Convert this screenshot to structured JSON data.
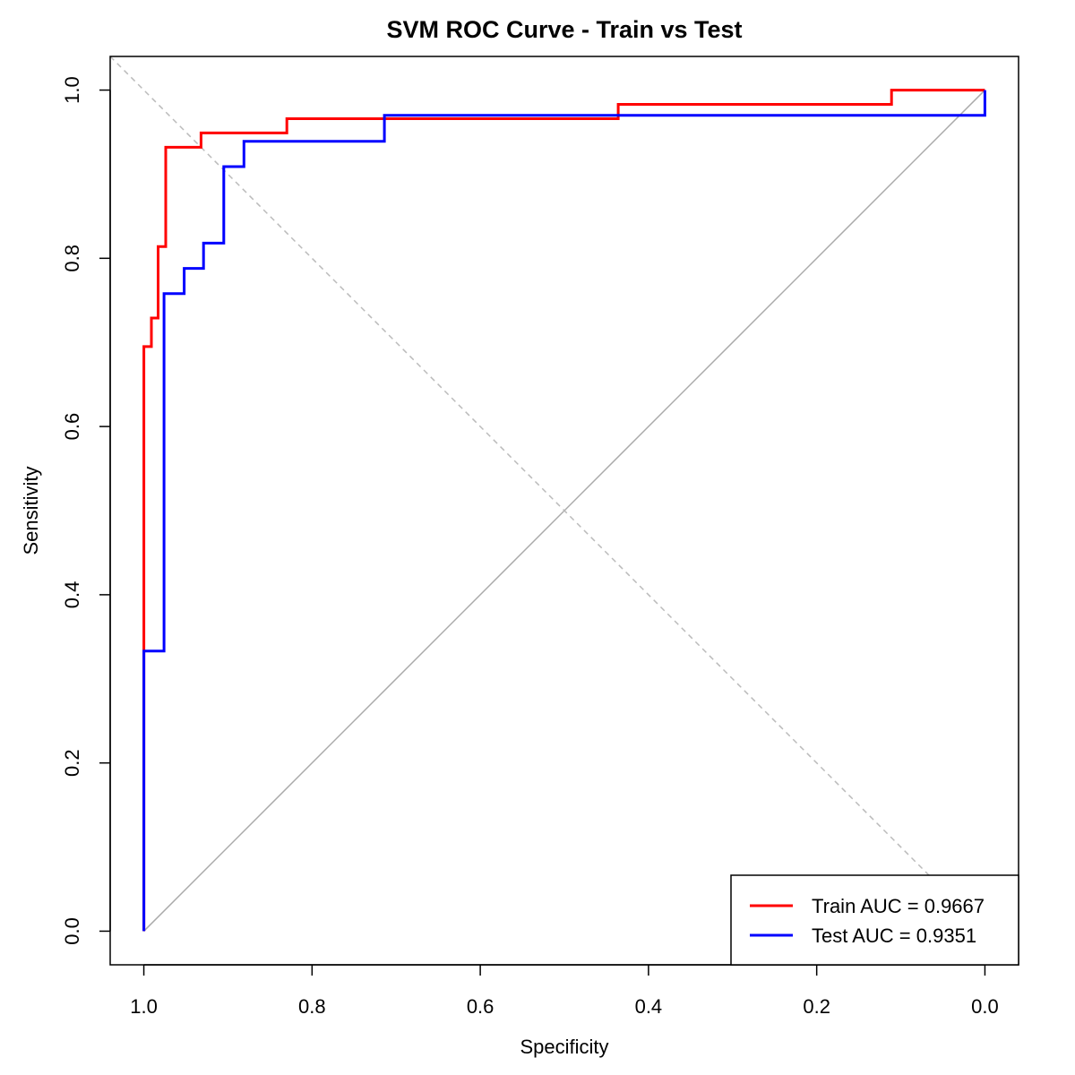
{
  "chart_data": {
    "type": "line",
    "title": "SVM ROC Curve - Train vs Test",
    "xlabel": "Specificity",
    "ylabel": "Sensitivity",
    "x_reversed": true,
    "xlim": [
      1.04,
      -0.04
    ],
    "ylim": [
      -0.04,
      1.04
    ],
    "x_ticks": [
      1.0,
      0.8,
      0.6,
      0.4,
      0.2,
      0.0
    ],
    "x_tick_labels": [
      "1.0",
      "0.8",
      "0.6",
      "0.4",
      "0.2",
      "0.0"
    ],
    "y_ticks": [
      0.0,
      0.2,
      0.4,
      0.6,
      0.8,
      1.0
    ],
    "y_tick_labels": [
      "0.0",
      "0.2",
      "0.4",
      "0.6",
      "0.8",
      "1.0"
    ],
    "grid": false,
    "legend_position": "bottom-right",
    "reference_lines": [
      {
        "name": "chance-diagonal",
        "style": "solid",
        "color": "#aaaaaa",
        "from": [
          1.0,
          0.0
        ],
        "to": [
          0.0,
          1.0
        ]
      },
      {
        "name": "anti-diagonal",
        "style": "dashed",
        "color": "#bbbbbb",
        "from": [
          1.04,
          1.04
        ],
        "to": [
          -0.04,
          -0.04
        ]
      }
    ],
    "series": [
      {
        "name": "Train AUC = 0.9667",
        "color": "#ff0000",
        "x": [
          1.0,
          1.0,
          0.991,
          0.991,
          0.983,
          0.983,
          0.974,
          0.974,
          0.932,
          0.932,
          0.83,
          0.83,
          0.436,
          0.436,
          0.111,
          0.111,
          0.0
        ],
        "y": [
          0.0,
          0.695,
          0.695,
          0.729,
          0.729,
          0.814,
          0.814,
          0.932,
          0.932,
          0.949,
          0.949,
          0.966,
          0.966,
          0.983,
          0.983,
          1.0,
          1.0
        ]
      },
      {
        "name": "Test AUC = 0.9351",
        "color": "#0000ff",
        "x": [
          1.0,
          1.0,
          0.976,
          0.976,
          0.952,
          0.952,
          0.929,
          0.929,
          0.905,
          0.905,
          0.881,
          0.881,
          0.714,
          0.714,
          0.0,
          0.0
        ],
        "y": [
          0.0,
          0.333,
          0.333,
          0.758,
          0.758,
          0.788,
          0.788,
          0.818,
          0.818,
          0.909,
          0.909,
          0.939,
          0.939,
          0.97,
          0.97,
          1.0
        ]
      }
    ]
  }
}
